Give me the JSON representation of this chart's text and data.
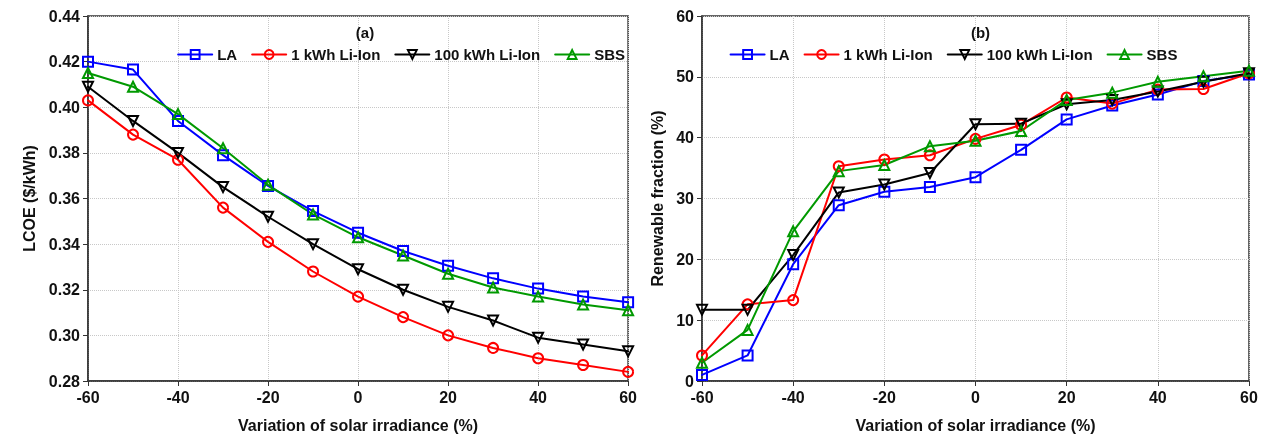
{
  "chart_data": [
    {
      "type": "line",
      "title": "(a)",
      "xlabel": "Variation of solar irradiance (%)",
      "ylabel": "LCOE ($/kWh)",
      "x": [
        -60,
        -50,
        -40,
        -30,
        -20,
        -10,
        0,
        10,
        20,
        30,
        40,
        50,
        60
      ],
      "series": [
        {
          "name": "LA",
          "color": "#0000ff",
          "marker": "square",
          "values": [
            0.42,
            0.4165,
            0.394,
            0.379,
            0.3655,
            0.3545,
            0.345,
            0.337,
            0.3305,
            0.325,
            0.3205,
            0.317,
            0.3145
          ]
        },
        {
          "name": "1 kWh Li-Ion",
          "color": "#ff0000",
          "marker": "circle",
          "values": [
            0.403,
            0.388,
            0.377,
            0.356,
            0.341,
            0.328,
            0.317,
            0.308,
            0.3,
            0.2945,
            0.29,
            0.287,
            0.284
          ]
        },
        {
          "name": "100 kWh Li-Ion",
          "color": "#000000",
          "marker": "triangle-down",
          "values": [
            0.409,
            0.394,
            0.38,
            0.365,
            0.352,
            0.34,
            0.329,
            0.32,
            0.3125,
            0.3065,
            0.299,
            0.296,
            0.293
          ]
        },
        {
          "name": "SBS",
          "color": "#009900",
          "marker": "triangle",
          "values": [
            0.415,
            0.409,
            0.397,
            0.382,
            0.366,
            0.353,
            0.343,
            0.335,
            0.327,
            0.321,
            0.317,
            0.3135,
            0.311
          ]
        }
      ],
      "xlim": [
        -60,
        60
      ],
      "xticks": [
        -60,
        -40,
        -20,
        0,
        20,
        40,
        60
      ],
      "ylim": [
        0.28,
        0.44
      ],
      "yticks": [
        0.28,
        {
          "value": 0.3,
          "label": "0.30"
        },
        0.32,
        0.34,
        0.36,
        0.38,
        {
          "value": 0.4,
          "label": "0.40"
        },
        0.42,
        0.44
      ],
      "grid": true,
      "legend": "top right",
      "line_style": "solid"
    },
    {
      "type": "line",
      "title": "(b)",
      "xlabel": "Variation of solar irradiance (%)",
      "ylabel": "Renewable fraction (%)",
      "x": [
        -60,
        -50,
        -40,
        -30,
        -20,
        -10,
        0,
        10,
        20,
        30,
        40,
        50,
        60
      ],
      "series": [
        {
          "name": "LA",
          "color": "#0000ff",
          "marker": "square",
          "values": [
            1,
            4.2,
            19.2,
            28.9,
            31.1,
            31.9,
            33.5,
            38,
            43,
            45.3,
            47.1,
            49.3,
            50.4
          ]
        },
        {
          "name": "1 kWh Li-Ion",
          "color": "#ff0000",
          "marker": "circle",
          "values": [
            4.2,
            12.6,
            13.3,
            35.3,
            36.4,
            37.1,
            39.8,
            42.1,
            46.6,
            45.6,
            47.9,
            48,
            50.6
          ]
        },
        {
          "name": "100 kWh Li-Ion",
          "color": "#000000",
          "marker": "triangle-down",
          "values": [
            11.7,
            11.7,
            20.7,
            31,
            32.3,
            34.2,
            42.2,
            42.3,
            45.5,
            46.2,
            47.6,
            49.2,
            50.6
          ]
        },
        {
          "name": "SBS",
          "color": "#009900",
          "marker": "triangle",
          "values": [
            3,
            8.4,
            24.6,
            34.5,
            35.5,
            38.6,
            39.5,
            41.1,
            46.2,
            47.4,
            49.2,
            50.1,
            51
          ]
        }
      ],
      "xlim": [
        -60,
        60
      ],
      "xticks": [
        -60,
        -40,
        -20,
        0,
        20,
        40,
        60
      ],
      "ylim": [
        0,
        60
      ],
      "yticks": [
        0,
        10,
        20,
        30,
        40,
        50,
        60
      ],
      "grid": true,
      "legend": "top",
      "line_style": "solid"
    }
  ]
}
